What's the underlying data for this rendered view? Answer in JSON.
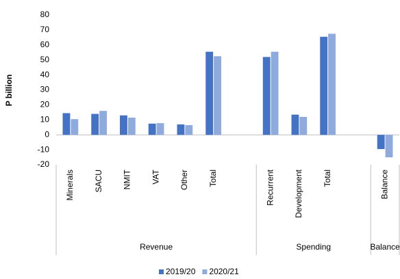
{
  "chart_data": {
    "type": "bar",
    "y_label": "P billion",
    "categories": [
      "Minerals",
      "SACU",
      "NMIT",
      "VAT",
      "Other",
      "Total",
      null,
      "Recurrent",
      "Development",
      "Total",
      null,
      "Balance"
    ],
    "groups": [
      {
        "name": "Revenue",
        "count": 7
      },
      {
        "name": "Spending",
        "count": 4
      },
      {
        "name": "Balance",
        "count": 1
      }
    ],
    "series": [
      {
        "name": "2019/20",
        "color": "#4472c4",
        "values": [
          14.5,
          14,
          13,
          7.5,
          7,
          55.5,
          null,
          52,
          13.5,
          65.5,
          null,
          -9.5
        ]
      },
      {
        "name": "2020/21",
        "color": "#8faadc",
        "values": [
          10.5,
          16,
          11.5,
          7.8,
          6.5,
          52.5,
          null,
          55.5,
          12,
          67.5,
          null,
          -15
        ]
      }
    ],
    "ylim": [
      -20,
      80
    ],
    "yticks": [
      -20,
      -10,
      0,
      10,
      20,
      30,
      40,
      50,
      60,
      70,
      80
    ],
    "grid": false,
    "legend": "bottom"
  }
}
